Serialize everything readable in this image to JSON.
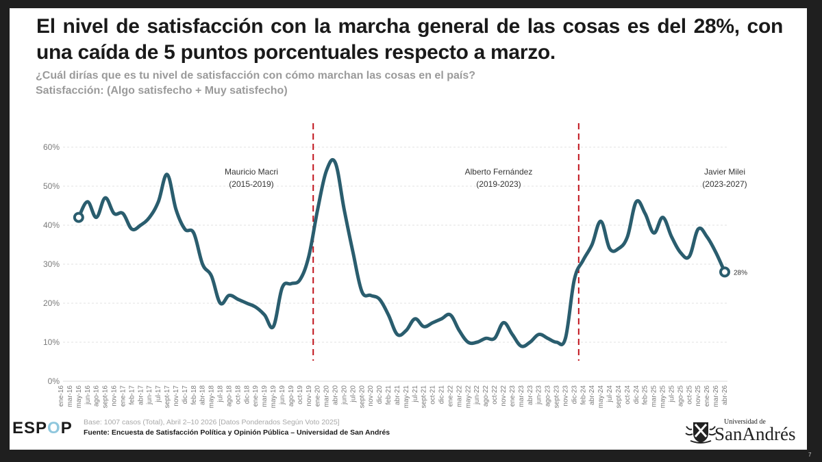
{
  "title": "El nivel de satisfacción con la marcha general de las cosas es del 28%, con una caída de 5 puntos porcentuales respecto a marzo.",
  "subtitle_question": "¿Cuál dirías que es tu nivel de satisfacción con cómo marchan las cosas en el país?",
  "subtitle_measure": "Satisfacción: (Algo satisfecho + Muy satisfecho)",
  "footer": {
    "logo_prefix": "ESP",
    "logo_o": "O",
    "logo_suffix": "P",
    "base": "Base: 1007 casos (Total), Abril 2–10 2026 [Datos Ponderados Según Voto 2025]",
    "source": "Fuente: Encuesta de Satisfacción Política y Opinión Pública – Universidad de San Andrés",
    "university_small": "Universidad de",
    "university_big": "SanAndrés",
    "page_number": "7"
  },
  "colors": {
    "line": "#2a5d6e",
    "divider": "#c0121b",
    "grid": "#e0e0e0",
    "axis_text": "#7a7a7a"
  },
  "chart_data": {
    "type": "line",
    "title": "El nivel de satisfacción con la marcha general de las cosas es del 28%",
    "xlabel": "",
    "ylabel": "",
    "ylim": [
      0,
      60
    ],
    "yticks": [
      0,
      10,
      20,
      30,
      40,
      50,
      60
    ],
    "ytick_labels": [
      "0%",
      "10%",
      "20%",
      "30%",
      "40%",
      "50%",
      "60%"
    ],
    "grid": true,
    "legend": "none",
    "categories": [
      "ene-16",
      "mar-16",
      "may-16",
      "jun-16",
      "ago-16",
      "sept-16",
      "nov-16",
      "ene-17",
      "feb-17",
      "abr-17",
      "jun-17",
      "jul-17",
      "sept-17",
      "nov-17",
      "dic-17",
      "feb-18",
      "abr-18",
      "may-18",
      "jul-18",
      "ago-18",
      "oct-18",
      "dic-18",
      "ene-19",
      "mar-19",
      "may-19",
      "jun-19",
      "ago-19",
      "oct-19",
      "nov-19",
      "ene-20",
      "mar-20",
      "abr-20",
      "jun-20",
      "jul-20",
      "sept-20",
      "nov-20",
      "dic-20",
      "feb-21",
      "abr-21",
      "may-21",
      "jul-21",
      "sept-21",
      "oct-21",
      "dic-21",
      "ene-22",
      "mar-22",
      "may-22",
      "jun-22",
      "ago-22",
      "oct-22",
      "nov-22",
      "ene-23",
      "mar-23",
      "abr-23",
      "jun-23",
      "ago-23",
      "sept-23",
      "nov-23",
      "dic-23",
      "feb-24",
      "abr-24",
      "may-24",
      "jul-24",
      "sept-24",
      "oct-24",
      "dic-24",
      "feb-25",
      "mar-25",
      "may-25",
      "jul-25",
      "ago-25",
      "oct-25",
      "nov-25",
      "ene-26",
      "mar-26",
      "abr-26"
    ],
    "series": [
      {
        "name": "Satisfacción",
        "values": [
          null,
          null,
          42,
          46,
          42,
          47,
          43,
          43,
          39,
          40,
          42,
          46,
          53,
          44,
          39,
          38,
          30,
          27,
          20,
          22,
          21,
          20,
          19,
          17,
          14,
          24,
          25,
          26,
          32,
          44,
          54,
          56,
          44,
          33,
          23,
          22,
          21,
          17,
          12,
          13,
          16,
          14,
          15,
          16,
          17,
          13,
          10,
          10,
          11,
          11,
          15,
          12,
          9,
          10,
          12,
          11,
          10,
          11,
          26,
          31,
          35,
          41,
          34,
          34,
          37,
          46,
          43,
          38,
          42,
          37,
          33,
          32,
          39,
          37,
          33,
          28
        ]
      }
    ],
    "end_label": "28%",
    "periods": [
      {
        "name": "Mauricio Macri",
        "years": "(2015-2019)"
      },
      {
        "name": "Alberto Fernández",
        "years": "(2019-2023)"
      },
      {
        "name": "Javier Milei",
        "years": "(2023-2027)"
      }
    ],
    "period_dividers_after": [
      "nov-19",
      "dic-23"
    ]
  }
}
